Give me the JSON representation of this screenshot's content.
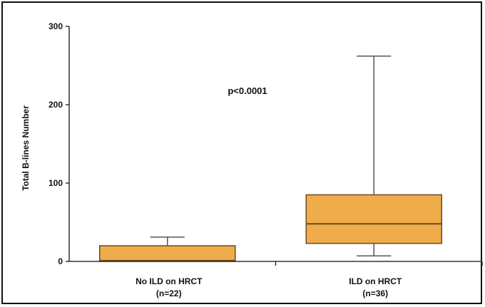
{
  "chart_data": {
    "type": "box",
    "ylabel": "Total B-lines Number",
    "ylim": [
      0,
      300
    ],
    "yticks": [
      0,
      100,
      200,
      300
    ],
    "annotation": "p<0.0001",
    "colors": {
      "box_fill": "#F0AC4B",
      "box_stroke": "#6B4A1C",
      "axis": "#333333"
    },
    "categories": [
      {
        "label_line1": "No ILD on HRCT",
        "label_line2": "(n=22)"
      },
      {
        "label_line1": "ILD on HRCT",
        "label_line2": "(n=36)"
      }
    ],
    "boxes": [
      {
        "min": 0,
        "q1": 0,
        "median": 1,
        "q3": 20,
        "max": 31
      },
      {
        "min": 7,
        "q1": 23,
        "median": 48,
        "q3": 85,
        "max": 262
      }
    ]
  }
}
